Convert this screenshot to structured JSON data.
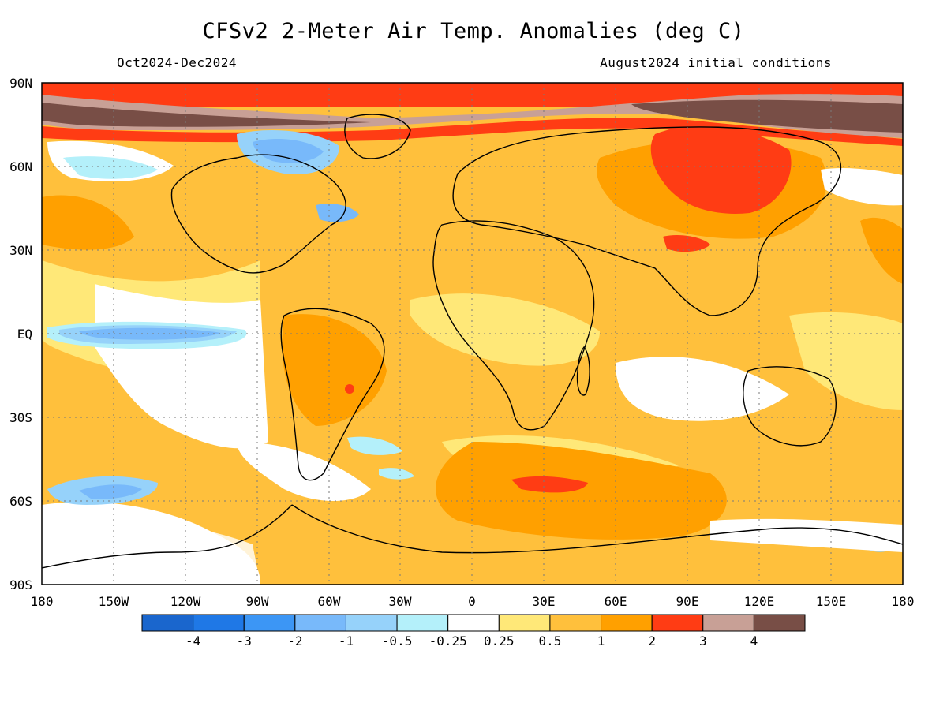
{
  "title": "CFSv2 2-Meter Air Temp. Anomalies (deg C)",
  "period": "Oct2024-Dec2024",
  "initial_conditions": "August2024 initial conditions",
  "map": {
    "lon_ticks": [
      "180",
      "150W",
      "120W",
      "90W",
      "60W",
      "30W",
      "0",
      "30E",
      "60E",
      "90E",
      "120E",
      "150E",
      "180"
    ],
    "lat_ticks": [
      "90N",
      "60N",
      "30N",
      "EQ",
      "30S",
      "60S",
      "90S"
    ],
    "lon_range": [
      -180,
      180
    ],
    "lat_range": [
      -90,
      90
    ],
    "grid": "dotted"
  },
  "colorbar": {
    "labels": [
      "-4",
      "-3",
      "-2",
      "-1",
      "-0.5",
      "-0.25",
      "0.25",
      "0.5",
      "1",
      "2",
      "3",
      "4"
    ],
    "colors": [
      "#1a66cd",
      "#1f78e6",
      "#3c96f5",
      "#78b9fa",
      "#96d2fa",
      "#b4f0fa",
      "#ffffff",
      "#ffe878",
      "#ffc03c",
      "#ffa000",
      "#ff3c14",
      "#c8a096",
      "#784e46"
    ]
  },
  "colors": {
    "warm_light": "#ffe878",
    "warm_mid": "#ffc03c",
    "warm_strong": "#ffa000",
    "hot": "#ff3c14",
    "very_hot": "#c8a096",
    "extreme": "#784e46",
    "cool_light": "#b4f0fa",
    "cool_mid": "#96d2fa",
    "cool_strong": "#78b9fa",
    "cold": "#3c96f5"
  }
}
